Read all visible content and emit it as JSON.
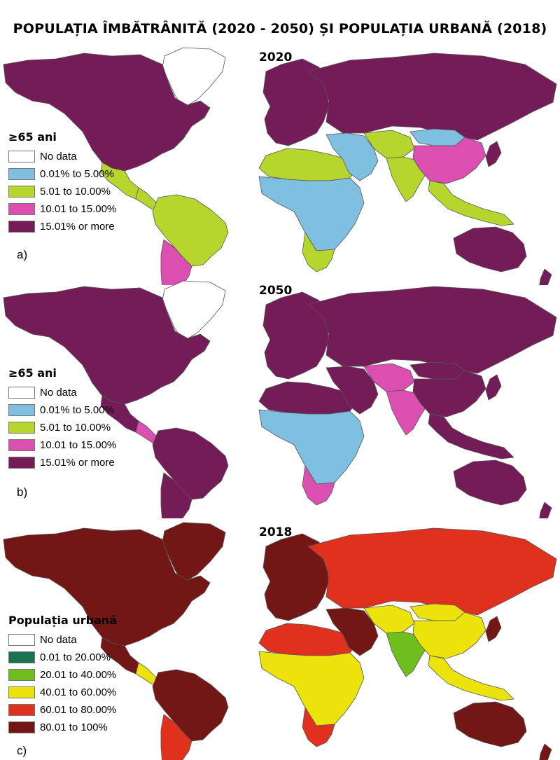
{
  "title": "POPULAȚIA ÎMBĂTRÂNITĂ (2020 - 2050) ȘI POPULAȚIA URBANĂ (2018)",
  "panels": [
    {
      "year": "2020",
      "letter": "a)",
      "legend_title": "≥65 ani",
      "legend": [
        {
          "label": "No data",
          "color": "#ffffff"
        },
        {
          "label": "0.01% to 5.00%",
          "color": "#7fbfe0"
        },
        {
          "label": "5.01 to 10.00%",
          "color": "#b7d62d"
        },
        {
          "label": "10.01 to 15.00%",
          "color": "#db4fb0"
        },
        {
          "label": "15.01% or more",
          "color": "#731c57"
        }
      ],
      "regions": {
        "north_america": "#731c57",
        "greenland": "#ffffff",
        "mexico": "#b7d62d",
        "central_america": "#b7d62d",
        "south_america": "#b7d62d",
        "southern_cone": "#db4fb0",
        "europe": "#731c57",
        "russia": "#731c57",
        "north_africa": "#b7d62d",
        "sub_saharan_africa": "#7fbfe0",
        "southern_africa": "#b7d62d",
        "middle_east": "#7fbfe0",
        "central_asia": "#b7d62d",
        "south_asia": "#b7d62d",
        "china": "#db4fb0",
        "mongolia": "#7fbfe0",
        "southeast_asia": "#b7d62d",
        "japan": "#731c57",
        "oceania": "#731c57"
      }
    },
    {
      "year": "2050",
      "letter": "b)",
      "legend_title": "≥65 ani",
      "legend": [
        {
          "label": "No data",
          "color": "#ffffff"
        },
        {
          "label": "0.01% to 5.00%",
          "color": "#7fbfe0"
        },
        {
          "label": "5.01 to 10.00%",
          "color": "#b7d62d"
        },
        {
          "label": "10.01 to 15.00%",
          "color": "#db4fb0"
        },
        {
          "label": "15.01% or more",
          "color": "#731c57"
        }
      ],
      "regions": {
        "north_america": "#731c57",
        "greenland": "#ffffff",
        "mexico": "#731c57",
        "central_america": "#db4fb0",
        "south_america": "#731c57",
        "southern_cone": "#731c57",
        "europe": "#731c57",
        "russia": "#731c57",
        "north_africa": "#731c57",
        "sub_saharan_africa": "#7fbfe0",
        "southern_africa": "#db4fb0",
        "middle_east": "#731c57",
        "central_asia": "#db4fb0",
        "south_asia": "#db4fb0",
        "china": "#731c57",
        "mongolia": "#731c57",
        "southeast_asia": "#731c57",
        "japan": "#731c57",
        "oceania": "#731c57"
      }
    },
    {
      "year": "2018",
      "letter": "c)",
      "legend_title": "Populația urbană",
      "legend": [
        {
          "label": "No data",
          "color": "#ffffff"
        },
        {
          "label": "0.01 to 20.00%",
          "color": "#1a7350"
        },
        {
          "label": "20.01 to 40.00%",
          "color": "#6ebf1e"
        },
        {
          "label": "40.01 to 60.00%",
          "color": "#ece20c"
        },
        {
          "label": "60.01 to 80.00%",
          "color": "#e0301e"
        },
        {
          "label": "80.01 to 100%",
          "color": "#721616"
        }
      ],
      "regions": {
        "north_america": "#721616",
        "greenland": "#721616",
        "mexico": "#721616",
        "central_america": "#ece20c",
        "south_america": "#721616",
        "southern_cone": "#e0301e",
        "europe": "#721616",
        "russia": "#e0301e",
        "north_africa": "#e0301e",
        "sub_saharan_africa": "#ece20c",
        "southern_africa": "#e0301e",
        "middle_east": "#721616",
        "central_asia": "#ece20c",
        "south_asia": "#6ebf1e",
        "china": "#ece20c",
        "mongolia": "#ece20c",
        "southeast_asia": "#ece20c",
        "japan": "#721616",
        "oceania": "#721616"
      }
    }
  ]
}
